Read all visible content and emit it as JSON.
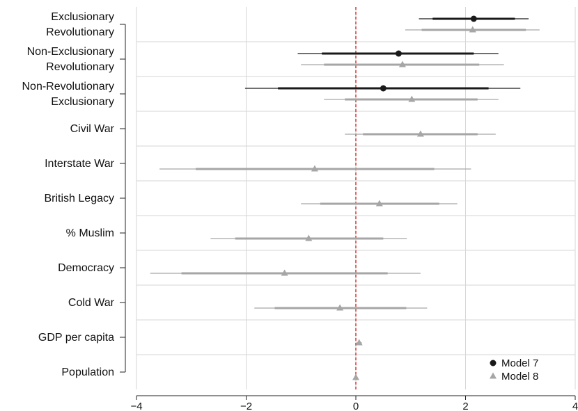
{
  "chart_data": {
    "type": "coefficient-plot",
    "xlim": [
      -4,
      4
    ],
    "x_ticks": [
      "−4",
      "−2",
      "0",
      "2",
      "4"
    ],
    "x_tick_values": [
      -4,
      -2,
      0,
      2,
      4
    ],
    "grid": true,
    "reference_line": {
      "x": 0,
      "color": "#d62728",
      "style": "dashed"
    },
    "legend_position": "bottom-right",
    "categories": [
      [
        "Exclusionary",
        "Revolutionary"
      ],
      [
        "Non-Exclusionary",
        "Revolutionary"
      ],
      [
        "Non-Revolutionary",
        "Exclusionary"
      ],
      [
        "Civil War"
      ],
      [
        "Interstate War"
      ],
      [
        "British Legacy"
      ],
      [
        "% Muslim"
      ],
      [
        "Democracy"
      ],
      [
        "Cold War"
      ],
      [
        "GDP per capita"
      ],
      [
        "Population"
      ]
    ],
    "series": [
      {
        "name": "Model 7",
        "marker": "circle",
        "color": "#1a1a1a",
        "points": [
          {
            "category": 0,
            "est": 2.15,
            "ci90": [
              1.4,
              2.9
            ],
            "ci95": [
              1.15,
              3.15
            ]
          },
          {
            "category": 1,
            "est": 0.78,
            "ci90": [
              -0.62,
              2.15
            ],
            "ci95": [
              -1.06,
              2.6
            ]
          },
          {
            "category": 2,
            "est": 0.5,
            "ci90": [
              -1.42,
              2.42
            ],
            "ci95": [
              -2.02,
              3.0
            ]
          }
        ]
      },
      {
        "name": "Model 8",
        "marker": "triangle",
        "color": "#a6a6a6",
        "points": [
          {
            "category": 0,
            "est": 2.13,
            "ci90": [
              1.2,
              3.1
            ],
            "ci95": [
              0.9,
              3.35
            ]
          },
          {
            "category": 1,
            "est": 0.85,
            "ci90": [
              -0.58,
              2.25
            ],
            "ci95": [
              -1.0,
              2.7
            ]
          },
          {
            "category": 2,
            "est": 1.02,
            "ci90": [
              -0.2,
              2.22
            ],
            "ci95": [
              -0.58,
              2.6
            ]
          },
          {
            "category": 3,
            "est": 1.18,
            "ci90": [
              0.13,
              2.22
            ],
            "ci95": [
              -0.2,
              2.55
            ]
          },
          {
            "category": 4,
            "est": -0.75,
            "ci90": [
              -2.92,
              1.43
            ],
            "ci95": [
              -3.58,
              2.1
            ]
          },
          {
            "category": 5,
            "est": 0.43,
            "ci90": [
              -0.65,
              1.52
            ],
            "ci95": [
              -1.0,
              1.85
            ]
          },
          {
            "category": 6,
            "est": -0.86,
            "ci90": [
              -2.2,
              0.5
            ],
            "ci95": [
              -2.65,
              0.93
            ]
          },
          {
            "category": 7,
            "est": -1.3,
            "ci90": [
              -3.18,
              0.58
            ],
            "ci95": [
              -3.75,
              1.18
            ]
          },
          {
            "category": 8,
            "est": -0.29,
            "ci90": [
              -1.48,
              0.92
            ],
            "ci95": [
              -1.85,
              1.3
            ]
          },
          {
            "category": 9,
            "est": 0.06,
            "ci90": [
              0.03,
              0.09
            ],
            "ci95": [
              0.01,
              0.11
            ]
          },
          {
            "category": 10,
            "est": 0.0,
            "ci90": [
              -0.01,
              0.01
            ],
            "ci95": [
              -0.02,
              0.02
            ]
          }
        ]
      }
    ]
  }
}
